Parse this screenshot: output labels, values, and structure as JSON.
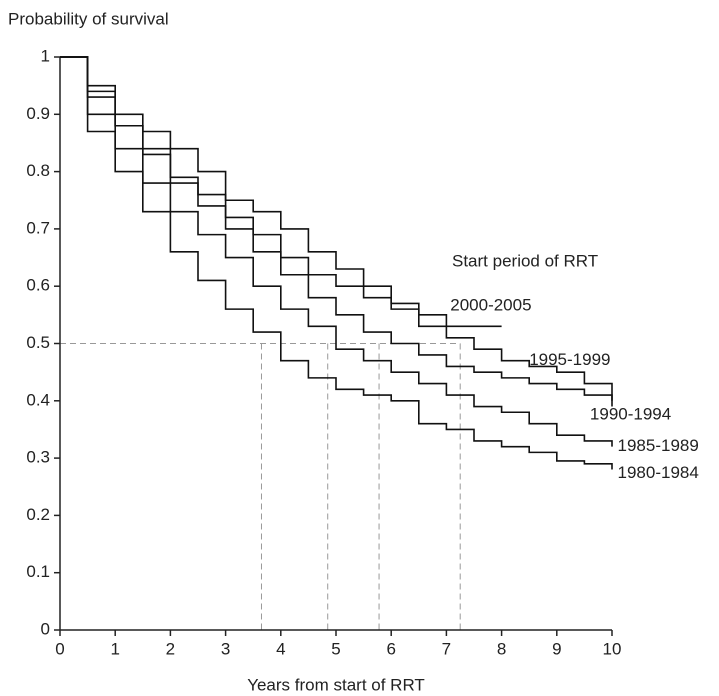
{
  "chart_data": {
    "type": "line",
    "step": true,
    "title": "Probability of survival",
    "x_label": "Years from start of RRT",
    "annotation": "Start period of RRT",
    "x": [
      0,
      0.5,
      1,
      1.5,
      2,
      2.5,
      3,
      3.5,
      4,
      4.5,
      5,
      5.5,
      6,
      6.5,
      7,
      7.5,
      8,
      8.5,
      9,
      9.5,
      10
    ],
    "series": [
      {
        "name": "2000-2005",
        "color": "#111111",
        "values": [
          1,
          0.95,
          0.9,
          0.87,
          0.84,
          0.8,
          0.75,
          0.73,
          0.7,
          0.66,
          0.63,
          0.6,
          0.57,
          0.55,
          0.53,
          0.53,
          0.53,
          null,
          null,
          null,
          null
        ]
      },
      {
        "name": "1995-1999",
        "color": "#111111",
        "values": [
          1,
          0.94,
          0.88,
          0.84,
          0.79,
          0.76,
          0.72,
          0.69,
          0.65,
          0.62,
          0.6,
          0.58,
          0.56,
          0.53,
          0.51,
          0.49,
          0.47,
          0.46,
          0.45,
          0.43,
          0.4
        ]
      },
      {
        "name": "1990-1994",
        "color": "#111111",
        "values": [
          1,
          0.93,
          0.88,
          0.83,
          0.78,
          0.74,
          0.7,
          0.66,
          0.62,
          0.58,
          0.55,
          0.52,
          0.5,
          0.48,
          0.46,
          0.45,
          0.44,
          0.43,
          0.42,
          0.41,
          0.39
        ]
      },
      {
        "name": "1985-1989",
        "color": "#111111",
        "values": [
          1,
          0.9,
          0.84,
          0.78,
          0.73,
          0.69,
          0.65,
          0.6,
          0.56,
          0.53,
          0.49,
          0.47,
          0.45,
          0.43,
          0.41,
          0.39,
          0.38,
          0.36,
          0.34,
          0.33,
          0.32
        ]
      },
      {
        "name": "1980-1984",
        "color": "#111111",
        "values": [
          1,
          0.87,
          0.8,
          0.73,
          0.66,
          0.61,
          0.56,
          0.52,
          0.47,
          0.44,
          0.42,
          0.41,
          0.4,
          0.36,
          0.35,
          0.33,
          0.32,
          0.31,
          0.295,
          0.29,
          0.28
        ]
      }
    ],
    "median_line": {
      "y": 0.5,
      "x": [
        3.65,
        4.85,
        5.78,
        7.25
      ]
    },
    "xlim": [
      0,
      10
    ],
    "ylim": [
      0,
      1
    ],
    "xticks": [
      0,
      1,
      2,
      3,
      4,
      5,
      6,
      7,
      8,
      9,
      10
    ],
    "yticks": [
      0,
      0.1,
      0.2,
      0.3,
      0.4,
      0.5,
      0.6,
      0.7,
      0.8,
      0.9,
      1
    ],
    "grid": false
  }
}
